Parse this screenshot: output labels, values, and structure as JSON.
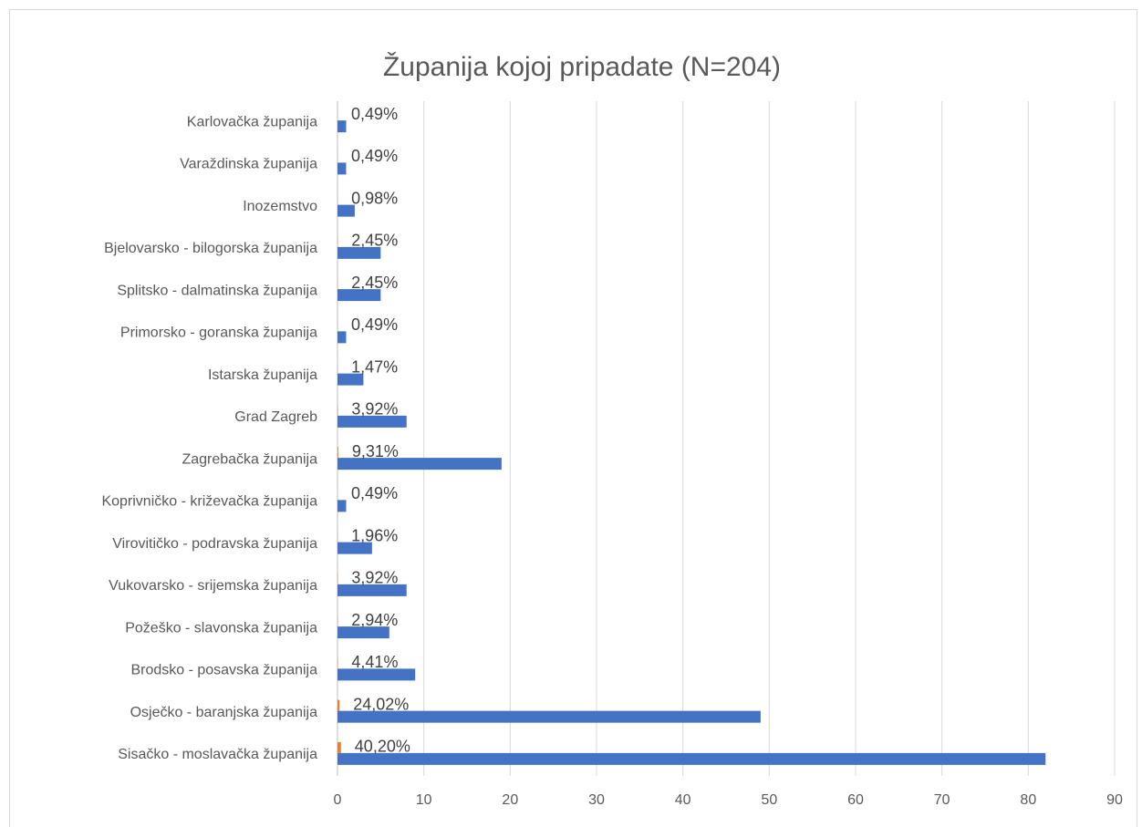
{
  "chart_data": {
    "type": "bar",
    "orientation": "horizontal",
    "title": "Županija kojoj pripadate (N=204)",
    "categories": [
      "Karlovačka županija",
      "Varaždinska županija",
      "Inozemstvo",
      "Bjelovarsko - bilogorska županija",
      "Splitsko - dalmatinska županija",
      "Primorsko - goranska županija",
      "Istarska županija",
      "Grad Zagreb",
      "Zagrebačka županija",
      "Koprivničko - križevačka županija",
      "Virovitičko - podravska županija",
      "Vukovarsko - srijemska županija",
      "Požeško - slavonska županija",
      "Brodsko - posavska županija",
      "Osječko - baranjska županija",
      "Sisačko - moslavačka županija"
    ],
    "series": [
      {
        "color": "#4472c4",
        "values": [
          1,
          1,
          2,
          5,
          5,
          1,
          3,
          8,
          19,
          1,
          4,
          8,
          6,
          9,
          49,
          82
        ]
      },
      {
        "color": "#ed7d31",
        "values": [
          0.0049,
          0.0049,
          0.0098,
          0.0245,
          0.0245,
          0.0049,
          0.0147,
          0.0392,
          0.0931,
          0.0049,
          0.0196,
          0.0392,
          0.0294,
          0.0441,
          0.2402,
          0.402
        ],
        "value_labels": [
          "0,49%",
          "0,49%",
          "0,98%",
          "2,45%",
          "2,45%",
          "0,49%",
          "1,47%",
          "3,92%",
          "9,31%",
          "0,49%",
          "1,96%",
          "3,92%",
          "2,94%",
          "4,41%",
          "24,02%",
          "40,20%"
        ]
      }
    ],
    "xlim": [
      0,
      90
    ],
    "xticks": [
      0,
      10,
      20,
      30,
      40,
      50,
      60,
      70,
      80,
      90
    ],
    "grid": true
  }
}
